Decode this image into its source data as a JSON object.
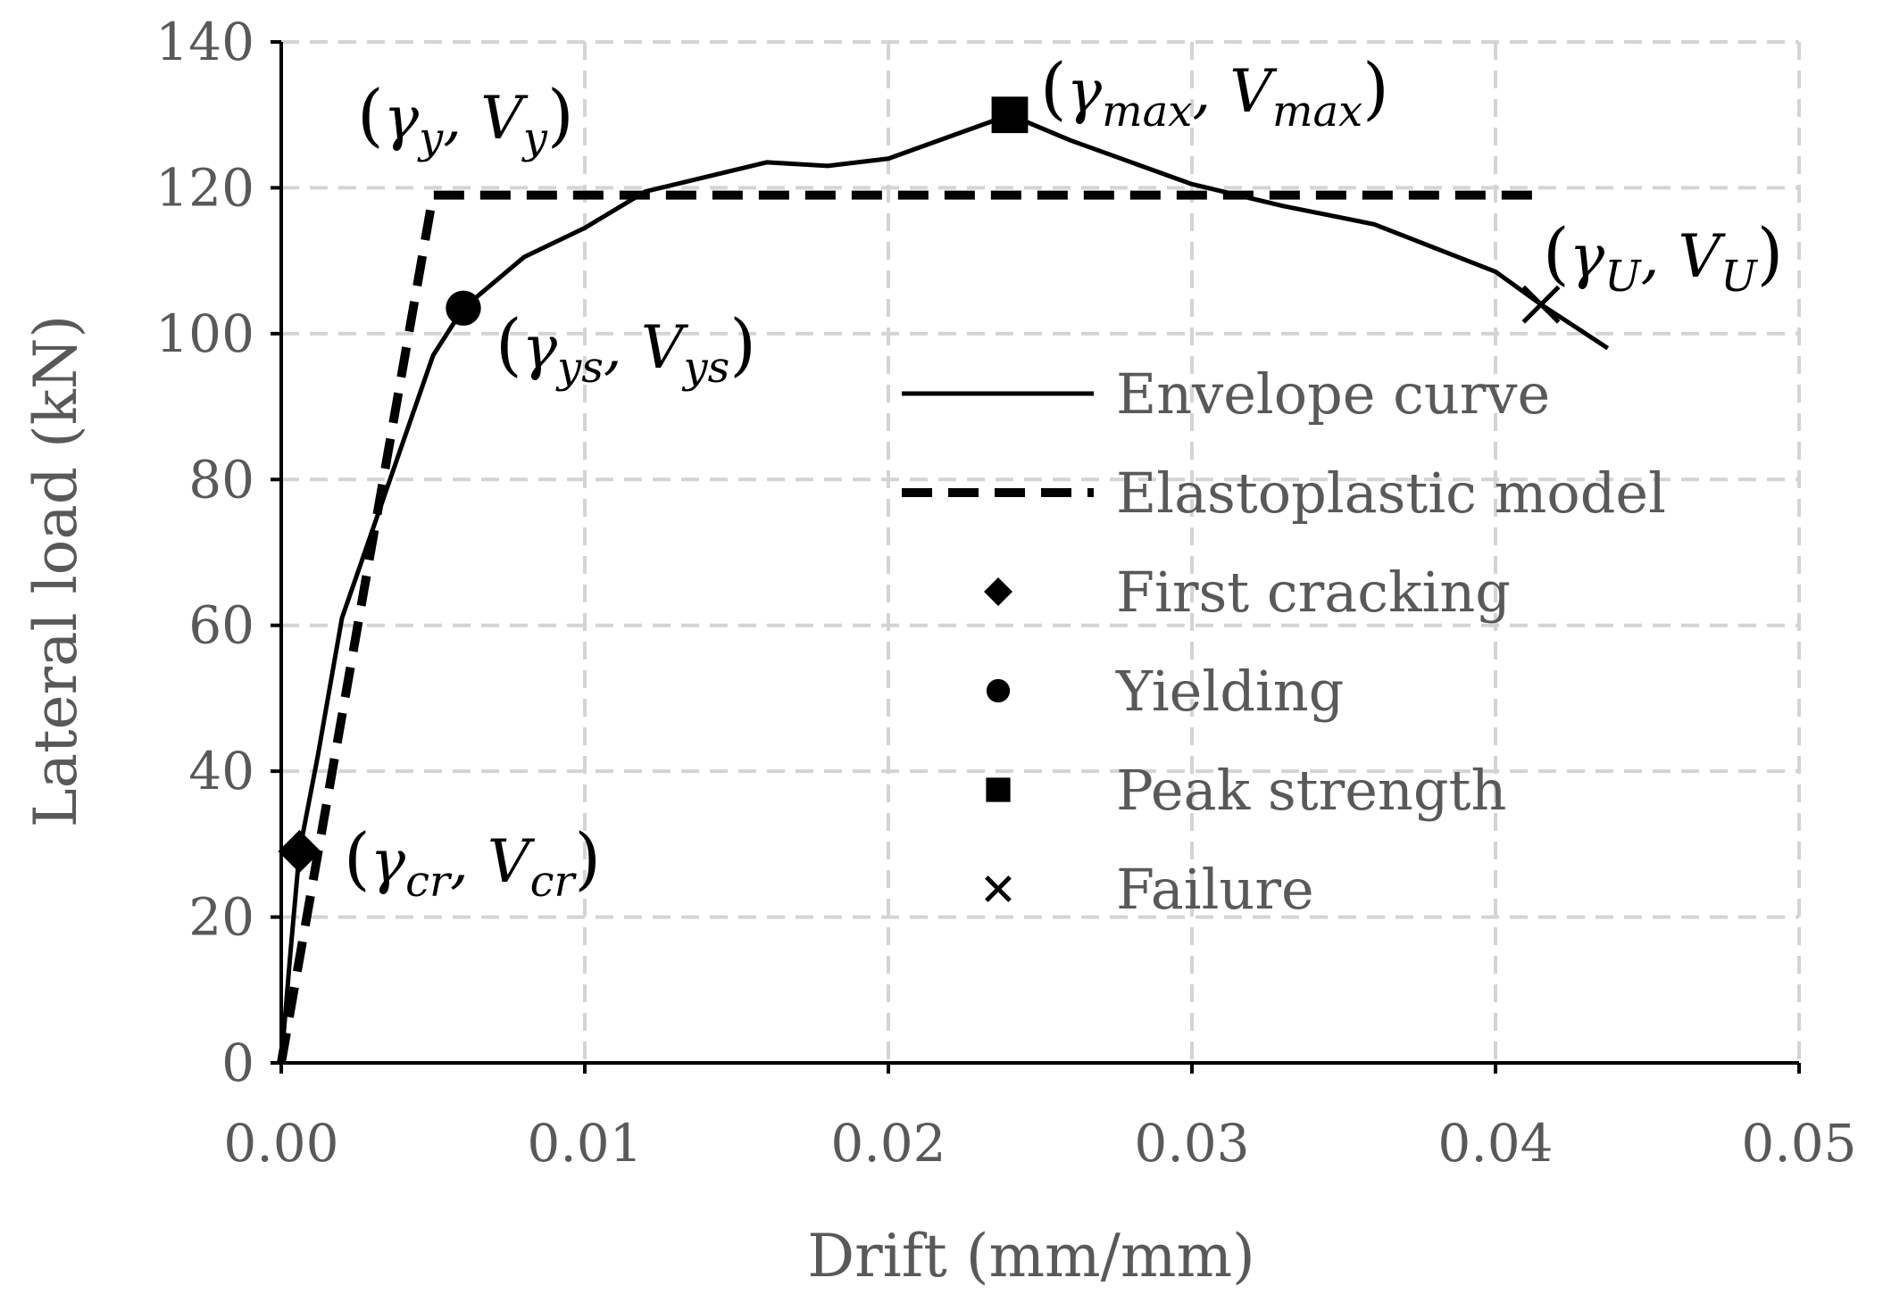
{
  "chart_data": {
    "type": "line",
    "xlabel": "Drift (mm/mm)",
    "ylabel": "Lateral load (kN)",
    "xlim": [
      0,
      0.05
    ],
    "ylim": [
      0,
      140
    ],
    "xticks": [
      "0.00",
      "0.01",
      "0.02",
      "0.03",
      "0.04",
      "0.05"
    ],
    "yticks": [
      "0",
      "20",
      "40",
      "60",
      "80",
      "100",
      "120",
      "140"
    ],
    "grid": true,
    "legend_position": "center-right",
    "series": [
      {
        "name": "Envelope curve",
        "style": "solid",
        "x": [
          0,
          0.0003,
          0.0006,
          0.0012,
          0.002,
          0.003,
          0.004,
          0.005,
          0.006,
          0.008,
          0.01,
          0.012,
          0.014,
          0.016,
          0.018,
          0.02,
          0.022,
          0.024,
          0.026,
          0.028,
          0.03,
          0.033,
          0.036,
          0.04,
          0.0415,
          0.0437
        ],
        "y": [
          0,
          15,
          29,
          42,
          61,
          73,
          85,
          97,
          103.5,
          110.5,
          114.5,
          119.5,
          121.5,
          123.5,
          123,
          124,
          127,
          130,
          126.5,
          123.5,
          120.5,
          117.5,
          115,
          108.5,
          104,
          98
        ]
      },
      {
        "name": "Elastoplastic model",
        "style": "dashed",
        "x": [
          0,
          0.005,
          0.0417
        ],
        "y": [
          0,
          119,
          119
        ]
      }
    ],
    "markers": [
      {
        "name": "First cracking",
        "shape": "diamond",
        "x": 0.0006,
        "y": 29
      },
      {
        "name": "Yielding",
        "shape": "circle",
        "x": 0.006,
        "y": 103.5
      },
      {
        "name": "Peak strength",
        "shape": "square",
        "x": 0.024,
        "y": 130
      },
      {
        "name": "Failure",
        "shape": "cross",
        "x": 0.0415,
        "y": 104
      }
    ],
    "legend": [
      "Envelope curve",
      "Elastoplastic model",
      "First cracking",
      "Yielding",
      "Peak strength",
      "Failure"
    ],
    "annotations": [
      {
        "symbol": "γ",
        "sub1": "y",
        "symbol2": "V",
        "sub2": "y",
        "target": "elastoplastic-knee"
      },
      {
        "symbol": "γ",
        "sub1": "ys",
        "symbol2": "V",
        "sub2": "ys",
        "target": "yielding"
      },
      {
        "symbol": "γ",
        "sub1": "max",
        "symbol2": "V",
        "sub2": "max",
        "target": "peak"
      },
      {
        "symbol": "γ",
        "sub1": "U",
        "symbol2": "V",
        "sub2": "U",
        "target": "failure"
      },
      {
        "symbol": "γ",
        "sub1": "cr",
        "symbol2": "V",
        "sub2": "cr",
        "target": "first-cracking"
      }
    ]
  },
  "colors": {
    "axis": "#000000",
    "grid": "#d4d4d4",
    "text": "#595959",
    "series": "#000000"
  }
}
